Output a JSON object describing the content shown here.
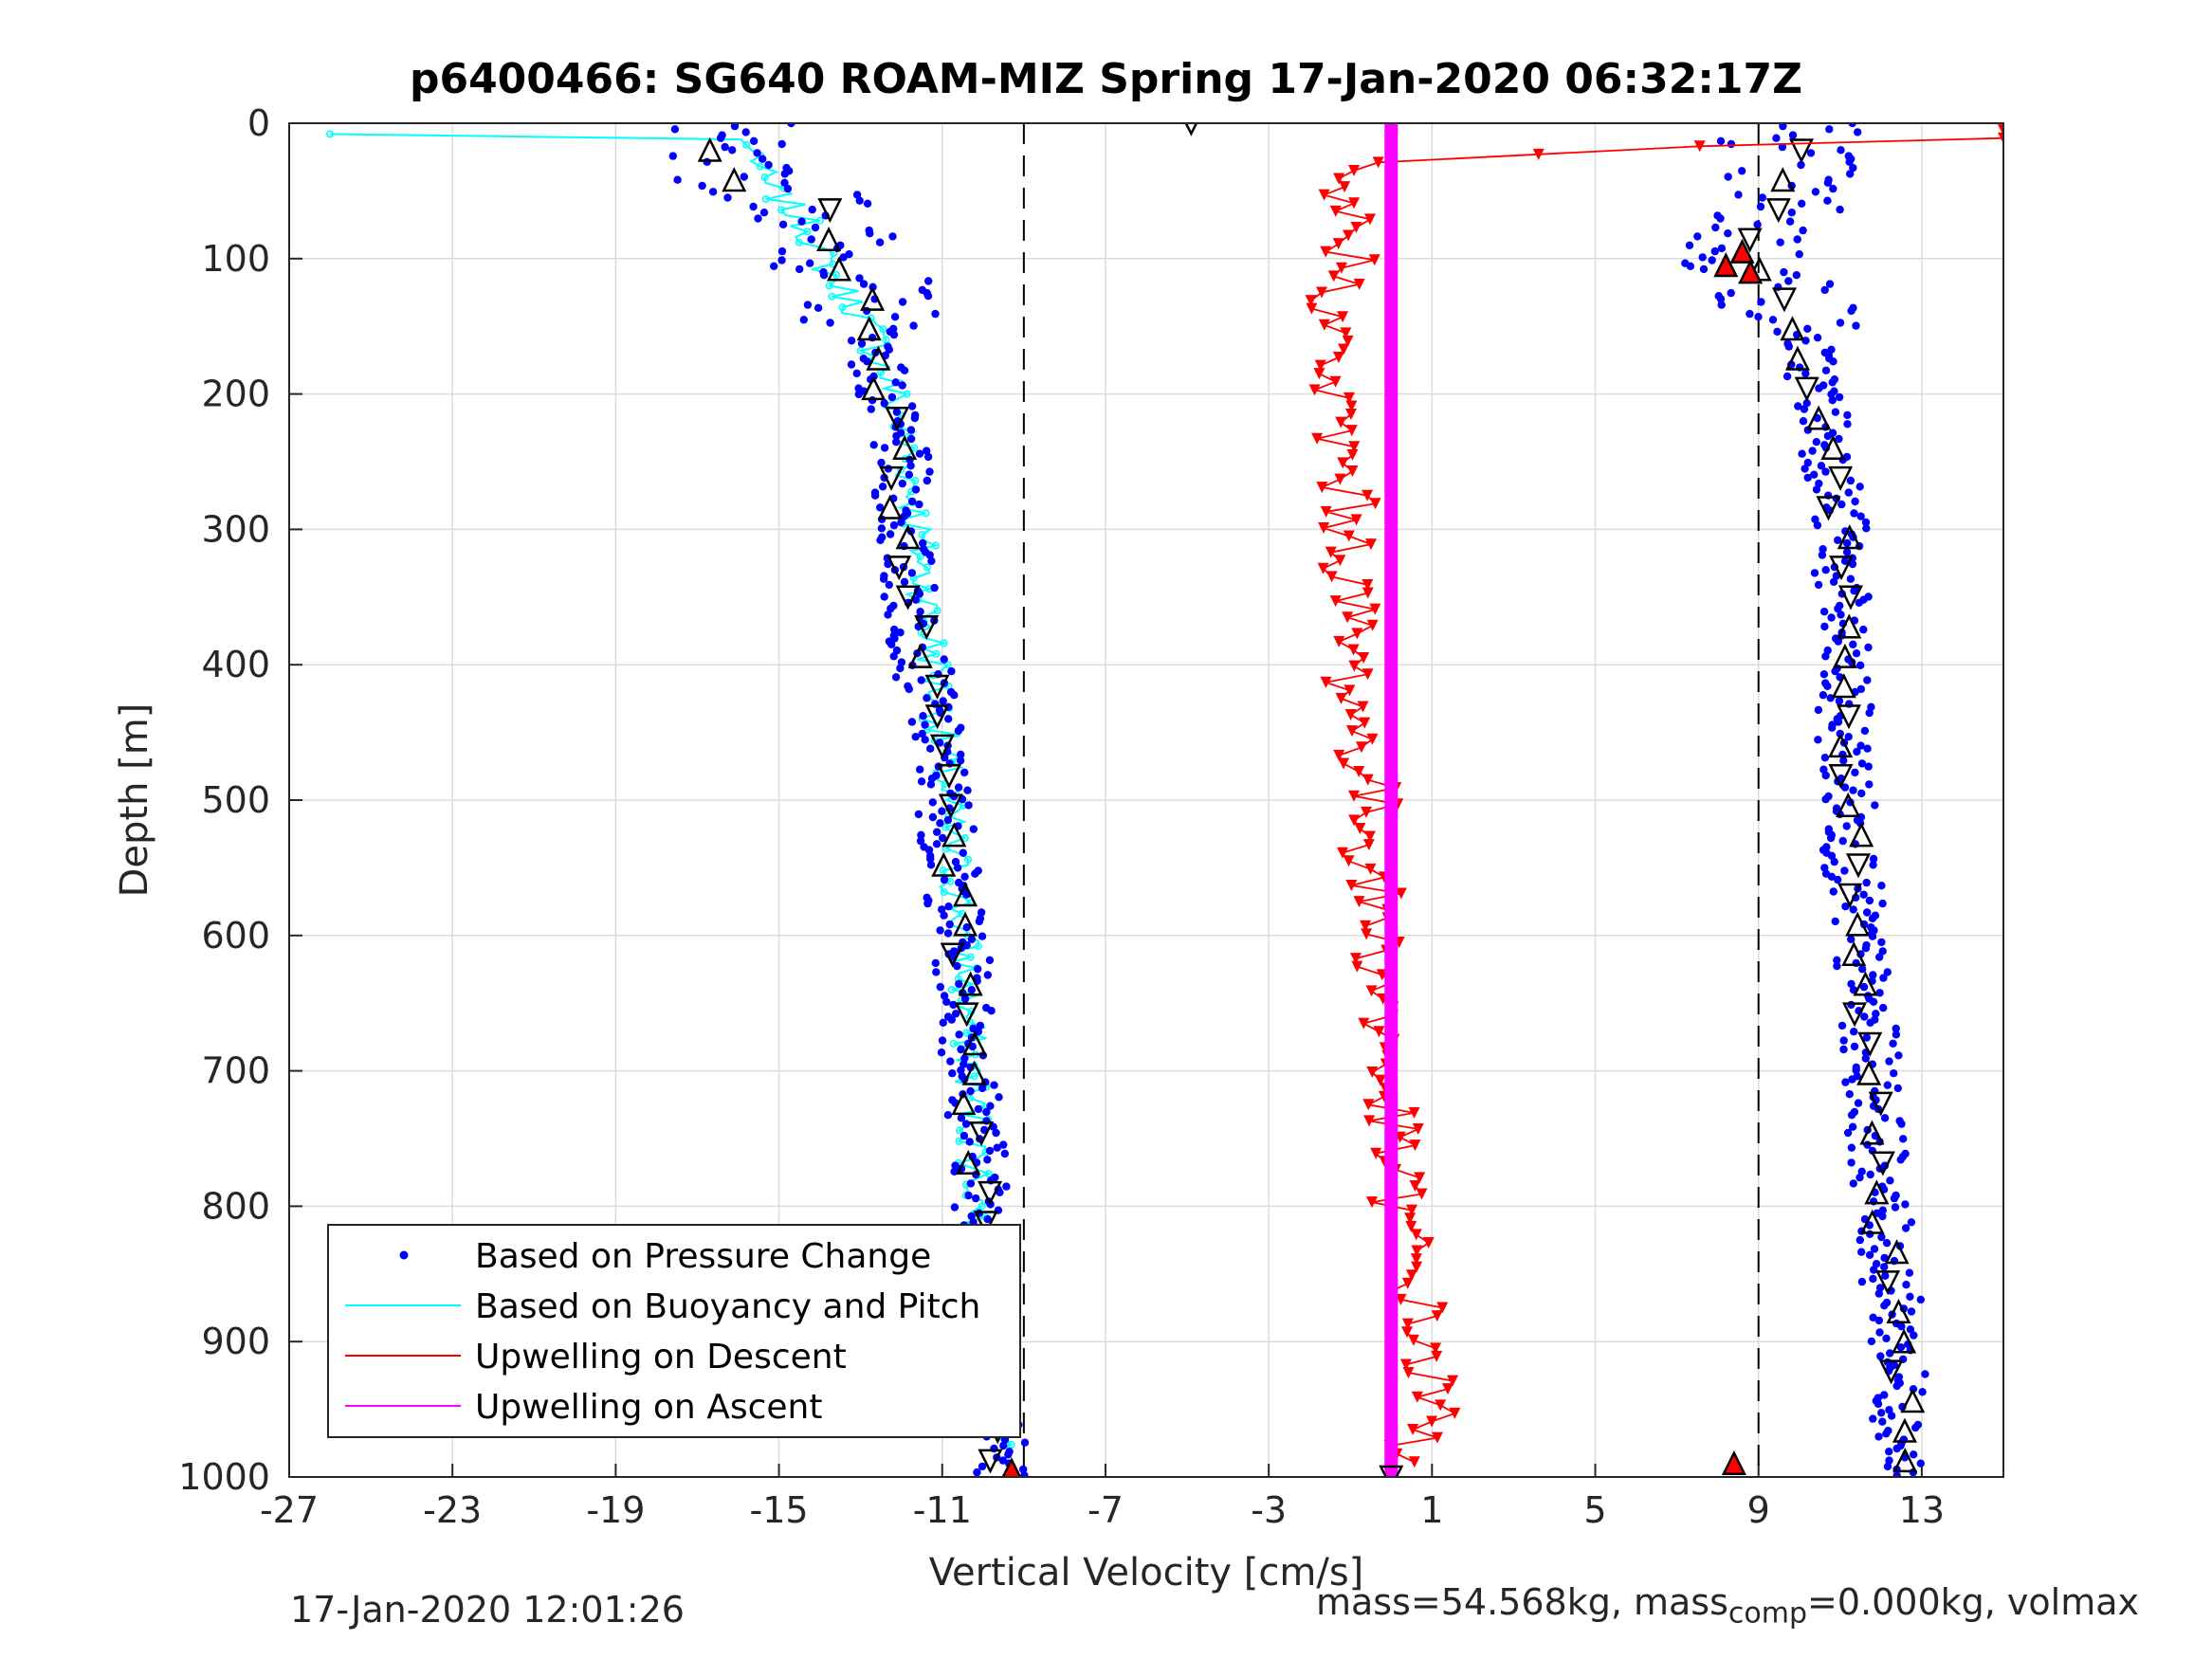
{
  "figure": {
    "title": "p6400466: SG640 ROAM-MIZ Spring 17-Jan-2020 06:32:17Z",
    "footer_left": "17-Jan-2020 12:01:26",
    "footer_right_mass": "mass=54.568kg, mass",
    "footer_right_sub": "comp",
    "footer_right_rest": "=0.000kg, volmax"
  },
  "chart_data": {
    "type": "scatter",
    "title": "p6400466: SG640 ROAM-MIZ Spring 17-Jan-2020 06:32:17Z",
    "xlabel": "Vertical Velocity [cm/s]",
    "ylabel": "Depth [m]",
    "xlim": [
      -27,
      15
    ],
    "ylim": [
      0,
      1000
    ],
    "y_reversed": true,
    "grid": true,
    "legend_position": "bottom-left",
    "x_ticks": [
      -27,
      -23,
      -19,
      -15,
      -11,
      -7,
      -3,
      1,
      5,
      9,
      13
    ],
    "y_ticks": [
      0,
      100,
      200,
      300,
      400,
      500,
      600,
      700,
      800,
      900,
      1000
    ],
    "reference_lines_x": [
      -9,
      9
    ],
    "colors": {
      "pressure": "#0000ff",
      "buoyancy": "#00ffff",
      "upwelling_descent": "#ff0000",
      "upwelling_ascent": "#ff00ff",
      "grid": "#dcdcdc",
      "axes": "#262626"
    },
    "series": [
      {
        "name": "Based on Pressure Change",
        "marker": "dot",
        "profiles": [
          {
            "segment": "descent",
            "depth": [
              0,
              10,
              25,
              40,
              60,
              80,
              100,
              120,
              150,
              200,
              250,
              300,
              350,
              400,
              450,
              500,
              550,
              600,
              650,
              700,
              750,
              800,
              850,
              900,
              950,
              1000
            ],
            "velocity": [
              -16,
              -16.5,
              -17,
              -16,
              -14,
              -13.8,
              -13.5,
              -13,
              -12.6,
              -12.5,
              -12,
              -12,
              -11.8,
              -11.5,
              -11.2,
              -10.9,
              -10.8,
              -10.6,
              -10.4,
              -10.3,
              -10.1,
              -10,
              -9.8,
              -9.7,
              -9.6,
              -9.5
            ]
          },
          {
            "segment": "ascent",
            "depth": [
              1000,
              950,
              900,
              850,
              800,
              750,
              700,
              650,
              600,
              550,
              500,
              450,
              400,
              350,
              300,
              250,
              200,
              150,
              120,
              100,
              80,
              60,
              40,
              20,
              0
            ],
            "velocity": [
              12.5,
              12.5,
              12.4,
              12.2,
              12,
              11.9,
              11.8,
              11.6,
              11.4,
              11.3,
              11.2,
              11.1,
              11,
              11,
              11,
              10.8,
              10.5,
              10,
              9.5,
              8.5,
              9,
              9.5,
              9.6,
              9.8,
              10
            ]
          }
        ]
      },
      {
        "name": "Based on Buoyancy and Pitch",
        "marker": "line-circle",
        "profiles": [
          {
            "segment": "descent",
            "depth": [
              8,
              10,
              25,
              40,
              60,
              80,
              100,
              120,
              150,
              200,
              250,
              300,
              350,
              400,
              450,
              500,
              550,
              600,
              650,
              700,
              750,
              800,
              850,
              900,
              950,
              980
            ],
            "velocity": [
              -26,
              -16,
              -15.5,
              -15.5,
              -14.8,
              -14.2,
              -14,
              -13.5,
              -12.8,
              -12.2,
              -11.8,
              -11.6,
              -11.4,
              -11.2,
              -11,
              -10.9,
              -10.7,
              -10.5,
              -10.4,
              -10.3,
              -10.2,
              -10.1,
              -10,
              -9.9,
              -9.8,
              -9.6
            ]
          }
        ]
      },
      {
        "name": "Upwelling on Descent",
        "marker": "triangle-down",
        "depth": [
          5,
          30,
          50,
          70,
          100,
          150,
          200,
          250,
          300,
          350,
          400,
          450,
          500,
          550,
          600,
          650,
          700,
          750,
          800,
          850,
          900,
          950,
          980
        ],
        "velocity": [
          15,
          -1.5,
          -1.5,
          -1,
          -1,
          -1.5,
          -1.5,
          -1.2,
          -1,
          -1,
          -1,
          -0.8,
          -0.5,
          -0.5,
          -0.3,
          -0.2,
          -0.2,
          0,
          0.2,
          0.5,
          0.8,
          1,
          0.5
        ]
      },
      {
        "name": "Upwelling on Ascent",
        "marker": "line",
        "depth": [
          0,
          1000
        ],
        "velocity": [
          0,
          0
        ]
      }
    ],
    "flagged_points": [
      {
        "kind": "outline-triangle",
        "velocity": -4.9,
        "depth": 0
      },
      {
        "kind": "red-triangle-up",
        "velocity": -9.3,
        "depth": 995
      },
      {
        "kind": "red-triangle-up",
        "velocity": 8.4,
        "depth": 990
      },
      {
        "kind": "red-triangle-up",
        "velocity": 8.2,
        "depth": 105
      },
      {
        "kind": "red-triangle-up",
        "velocity": 8.6,
        "depth": 95
      },
      {
        "kind": "red-triangle-up",
        "velocity": 8.8,
        "depth": 110
      },
      {
        "kind": "outline-triangle",
        "velocity": 0,
        "depth": 1000
      }
    ]
  }
}
